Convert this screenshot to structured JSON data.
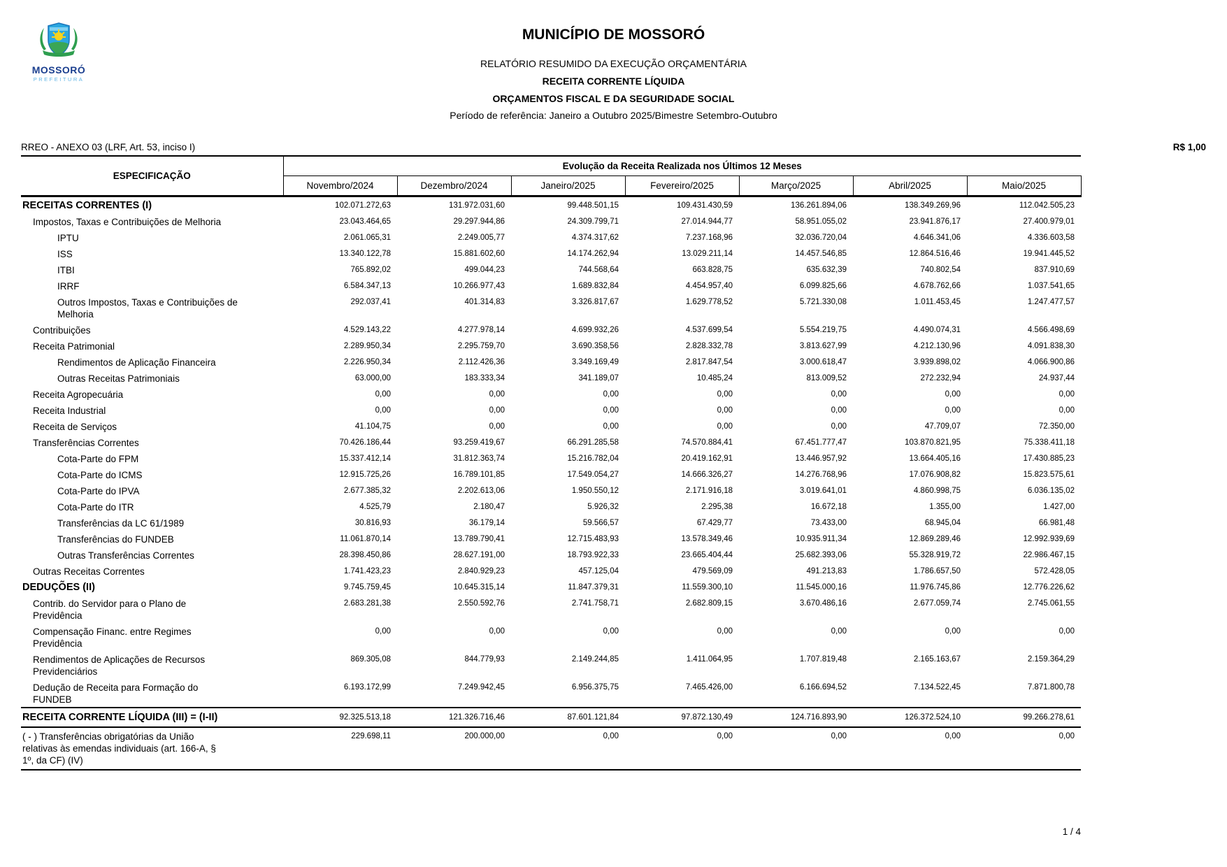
{
  "logo": {
    "name": "MOSSORÓ",
    "sub": "PREFEITURA"
  },
  "header": {
    "title": "MUNICÍPIO DE MOSSORÓ",
    "subtitle1": "RELATÓRIO RESUMIDO DA EXECUÇÃO ORÇAMENTÁRIA",
    "subtitle2": "RECEITA CORRENTE LÍQUIDA",
    "subtitle3": "ORÇAMENTOS FISCAL E DA SEGURIDADE SOCIAL",
    "period": "Período de referência: Janeiro a Outubro 2025/Bimestre Setembro-Outubro"
  },
  "meta": {
    "annex": "RREO - ANEXO 03 (LRF, Art. 53, inciso I)",
    "currency": "R$ 1,00"
  },
  "table": {
    "spec_header": "ESPECIFICAÇÃO",
    "group_header": "Evolução da Receita Realizada nos Últimos 12 Meses",
    "columns": [
      "Novembro/2024",
      "Dezembro/2024",
      "Janeiro/2025",
      "Fevereiro/2025",
      "Março/2025",
      "Abril/2025",
      "Maio/2025"
    ],
    "rows": [
      {
        "label": "RECEITAS CORRENTES (I)",
        "indent": 0,
        "bold": true,
        "values": [
          "102.071.272,63",
          "131.972.031,60",
          "99.448.501,15",
          "109.431.430,59",
          "136.261.894,06",
          "138.349.269,96",
          "112.042.505,23"
        ]
      },
      {
        "label": "Impostos, Taxas e Contribuições de Melhoria",
        "indent": 1,
        "bold": false,
        "values": [
          "23.043.464,65",
          "29.297.944,86",
          "24.309.799,71",
          "27.014.944,77",
          "58.951.055,02",
          "23.941.876,17",
          "27.400.979,01"
        ]
      },
      {
        "label": "IPTU",
        "indent": 2,
        "bold": false,
        "values": [
          "2.061.065,31",
          "2.249.005,77",
          "4.374.317,62",
          "7.237.168,96",
          "32.036.720,04",
          "4.646.341,06",
          "4.336.603,58"
        ]
      },
      {
        "label": "ISS",
        "indent": 2,
        "bold": false,
        "values": [
          "13.340.122,78",
          "15.881.602,60",
          "14.174.262,94",
          "13.029.211,14",
          "14.457.546,85",
          "12.864.516,46",
          "19.941.445,52"
        ]
      },
      {
        "label": "ITBI",
        "indent": 2,
        "bold": false,
        "values": [
          "765.892,02",
          "499.044,23",
          "744.568,64",
          "663.828,75",
          "635.632,39",
          "740.802,54",
          "837.910,69"
        ]
      },
      {
        "label": "IRRF",
        "indent": 2,
        "bold": false,
        "values": [
          "6.584.347,13",
          "10.266.977,43",
          "1.689.832,84",
          "4.454.957,40",
          "6.099.825,66",
          "4.678.762,66",
          "1.037.541,65"
        ]
      },
      {
        "label": "Outros Impostos, Taxas e Contribuições de\nMelhoria",
        "indent": 2,
        "bold": false,
        "values": [
          "292.037,41",
          "401.314,83",
          "3.326.817,67",
          "1.629.778,52",
          "5.721.330,08",
          "1.011.453,45",
          "1.247.477,57"
        ]
      },
      {
        "label": "Contribuições",
        "indent": 1,
        "bold": false,
        "values": [
          "4.529.143,22",
          "4.277.978,14",
          "4.699.932,26",
          "4.537.699,54",
          "5.554.219,75",
          "4.490.074,31",
          "4.566.498,69"
        ]
      },
      {
        "label": "Receita Patrimonial",
        "indent": 1,
        "bold": false,
        "values": [
          "2.289.950,34",
          "2.295.759,70",
          "3.690.358,56",
          "2.828.332,78",
          "3.813.627,99",
          "4.212.130,96",
          "4.091.838,30"
        ]
      },
      {
        "label": "Rendimentos de Aplicação Financeira",
        "indent": 2,
        "bold": false,
        "values": [
          "2.226.950,34",
          "2.112.426,36",
          "3.349.169,49",
          "2.817.847,54",
          "3.000.618,47",
          "3.939.898,02",
          "4.066.900,86"
        ]
      },
      {
        "label": "Outras Receitas Patrimoniais",
        "indent": 2,
        "bold": false,
        "values": [
          "63.000,00",
          "183.333,34",
          "341.189,07",
          "10.485,24",
          "813.009,52",
          "272.232,94",
          "24.937,44"
        ]
      },
      {
        "label": "Receita Agropecuária",
        "indent": 1,
        "bold": false,
        "values": [
          "0,00",
          "0,00",
          "0,00",
          "0,00",
          "0,00",
          "0,00",
          "0,00"
        ]
      },
      {
        "label": "Receita Industrial",
        "indent": 1,
        "bold": false,
        "values": [
          "0,00",
          "0,00",
          "0,00",
          "0,00",
          "0,00",
          "0,00",
          "0,00"
        ]
      },
      {
        "label": "Receita de Serviços",
        "indent": 1,
        "bold": false,
        "values": [
          "41.104,75",
          "0,00",
          "0,00",
          "0,00",
          "0,00",
          "47.709,07",
          "72.350,00"
        ]
      },
      {
        "label": "Transferências Correntes",
        "indent": 1,
        "bold": false,
        "values": [
          "70.426.186,44",
          "93.259.419,67",
          "66.291.285,58",
          "74.570.884,41",
          "67.451.777,47",
          "103.870.821,95",
          "75.338.411,18"
        ]
      },
      {
        "label": "Cota-Parte do FPM",
        "indent": 2,
        "bold": false,
        "values": [
          "15.337.412,14",
          "31.812.363,74",
          "15.216.782,04",
          "20.419.162,91",
          "13.446.957,92",
          "13.664.405,16",
          "17.430.885,23"
        ]
      },
      {
        "label": "Cota-Parte do ICMS",
        "indent": 2,
        "bold": false,
        "values": [
          "12.915.725,26",
          "16.789.101,85",
          "17.549.054,27",
          "14.666.326,27",
          "14.276.768,96",
          "17.076.908,82",
          "15.823.575,61"
        ]
      },
      {
        "label": "Cota-Parte do IPVA",
        "indent": 2,
        "bold": false,
        "values": [
          "2.677.385,32",
          "2.202.613,06",
          "1.950.550,12",
          "2.171.916,18",
          "3.019.641,01",
          "4.860.998,75",
          "6.036.135,02"
        ]
      },
      {
        "label": "Cota-Parte do ITR",
        "indent": 2,
        "bold": false,
        "values": [
          "4.525,79",
          "2.180,47",
          "5.926,32",
          "2.295,38",
          "16.672,18",
          "1.355,00",
          "1.427,00"
        ]
      },
      {
        "label": "Transferências da LC 61/1989",
        "indent": 2,
        "bold": false,
        "values": [
          "30.816,93",
          "36.179,14",
          "59.566,57",
          "67.429,77",
          "73.433,00",
          "68.945,04",
          "66.981,48"
        ]
      },
      {
        "label": "Transferências do FUNDEB",
        "indent": 2,
        "bold": false,
        "values": [
          "11.061.870,14",
          "13.789.790,41",
          "12.715.483,93",
          "13.578.349,46",
          "10.935.911,34",
          "12.869.289,46",
          "12.992.939,69"
        ]
      },
      {
        "label": "Outras Transferências Correntes",
        "indent": 2,
        "bold": false,
        "values": [
          "28.398.450,86",
          "28.627.191,00",
          "18.793.922,33",
          "23.665.404,44",
          "25.682.393,06",
          "55.328.919,72",
          "22.986.467,15"
        ]
      },
      {
        "label": "Outras Receitas Correntes",
        "indent": 1,
        "bold": false,
        "values": [
          "1.741.423,23",
          "2.840.929,23",
          "457.125,04",
          "479.569,09",
          "491.213,83",
          "1.786.657,50",
          "572.428,05"
        ]
      },
      {
        "label": "DEDUÇÕES (II)",
        "indent": 0,
        "bold": true,
        "values": [
          "9.745.759,45",
          "10.645.315,14",
          "11.847.379,31",
          "11.559.300,10",
          "11.545.000,16",
          "11.976.745,86",
          "12.776.226,62"
        ]
      },
      {
        "label": "Contrib. do Servidor para o Plano de\nPrevidência",
        "indent": 1,
        "bold": false,
        "values": [
          "2.683.281,38",
          "2.550.592,76",
          "2.741.758,71",
          "2.682.809,15",
          "3.670.486,16",
          "2.677.059,74",
          "2.745.061,55"
        ]
      },
      {
        "label": "Compensação Financ. entre Regimes\nPrevidência",
        "indent": 1,
        "bold": false,
        "values": [
          "0,00",
          "0,00",
          "0,00",
          "0,00",
          "0,00",
          "0,00",
          "0,00"
        ]
      },
      {
        "label": "Rendimentos de Aplicações de Recursos\nPrevidenciários",
        "indent": 1,
        "bold": false,
        "values": [
          "869.305,08",
          "844.779,93",
          "2.149.244,85",
          "1.411.064,95",
          "1.707.819,48",
          "2.165.163,67",
          "2.159.364,29"
        ]
      },
      {
        "label": "Dedução de Receita para Formação do\nFUNDEB",
        "indent": 1,
        "bold": false,
        "values": [
          "6.193.172,99",
          "7.249.942,45",
          "6.956.375,75",
          "7.465.426,00",
          "6.166.694,52",
          "7.134.522,45",
          "7.871.800,78"
        ]
      },
      {
        "label": "RECEITA CORRENTE LÍQUIDA (III) = (I-II)",
        "indent": 0,
        "bold": true,
        "cls": "row-rcl",
        "values": [
          "92.325.513,18",
          "121.326.716,46",
          "87.601.121,84",
          "97.872.130,49",
          "124.716.893,90",
          "126.372.524,10",
          "99.266.278,61"
        ]
      },
      {
        "label": "( - ) Transferências obrigatórias da União\nrelativas às emendas individuais (art. 166-A, §\n1º, da CF) (IV)",
        "indent": 0,
        "bold": false,
        "cls": "row-last",
        "values": [
          "229.698,11",
          "200.000,00",
          "0,00",
          "0,00",
          "0,00",
          "0,00",
          "0,00"
        ]
      }
    ]
  },
  "footer": {
    "page": "1 / 4"
  }
}
